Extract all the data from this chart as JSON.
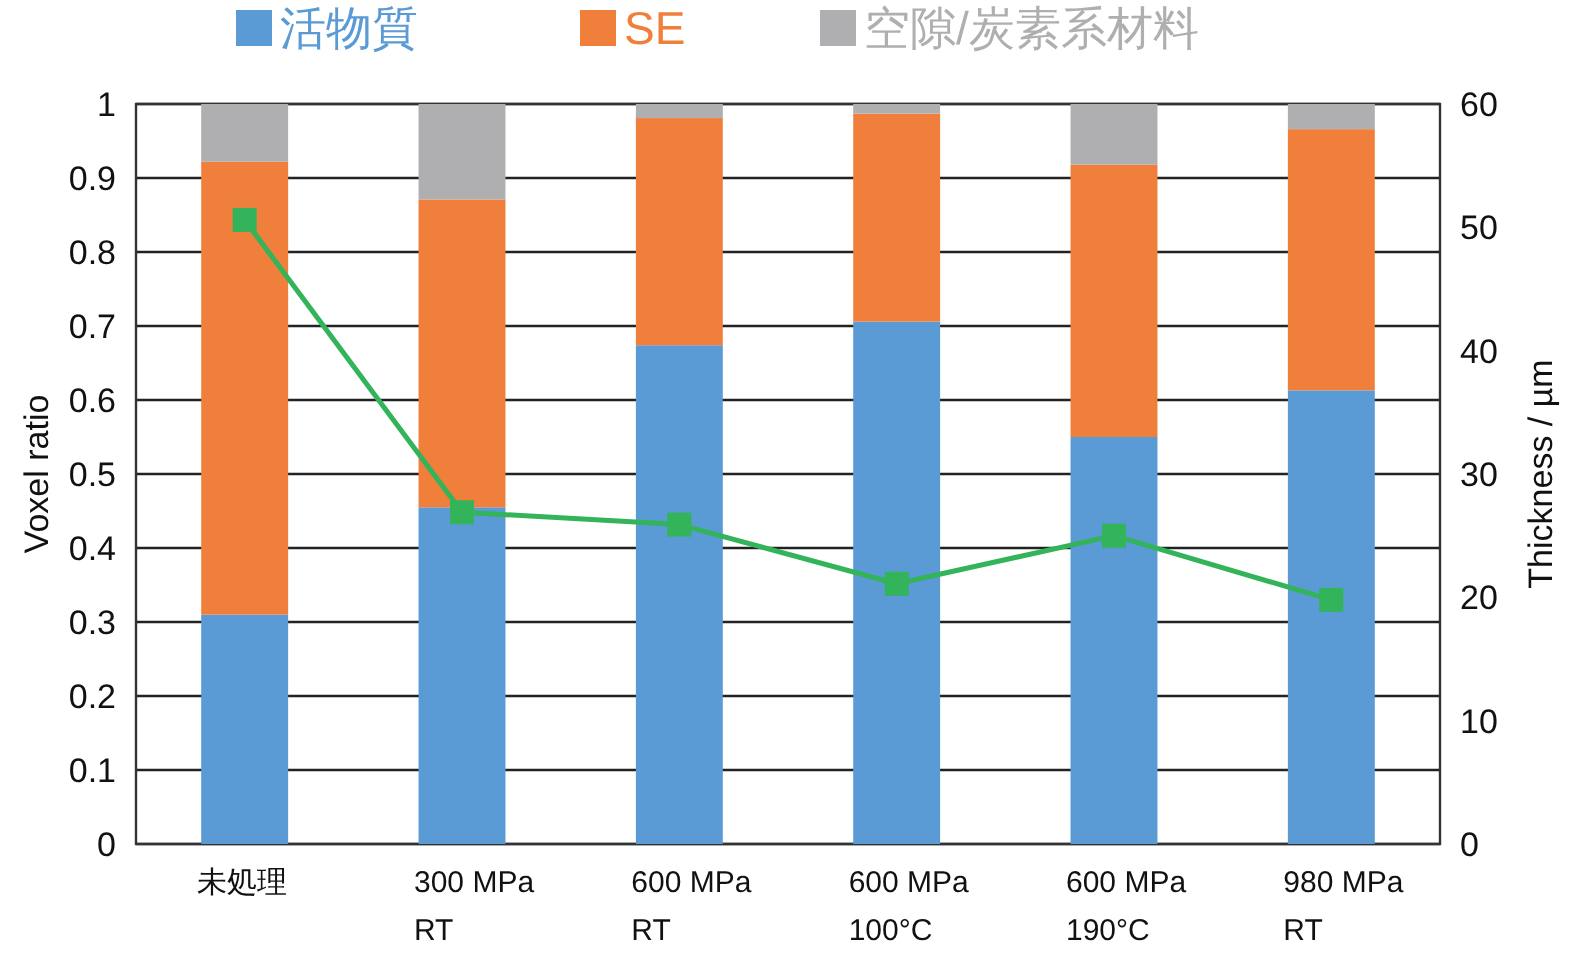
{
  "chart_data": {
    "type": "bar",
    "stacked": true,
    "categories": [
      "未処理",
      "300 MPa\nRT",
      "600 MPa\nRT",
      "600 MPa\n100°C",
      "600 MPa\n190°C",
      "980 MPa\nRT"
    ],
    "series": [
      {
        "name": "活物質",
        "color": "#5b9bd5",
        "values": [
          0.31,
          0.455,
          0.674,
          0.706,
          0.55,
          0.613
        ]
      },
      {
        "name": "SE",
        "color": "#f07f3c",
        "values": [
          0.612,
          0.416,
          0.307,
          0.281,
          0.368,
          0.353
        ]
      },
      {
        "name": "空隙/炭素系材料",
        "color": "#afafb2",
        "values": [
          0.078,
          0.129,
          0.019,
          0.013,
          0.082,
          0.034
        ]
      },
      {
        "type": "line",
        "axis": "y2",
        "color": "#33b35a",
        "marker": "square",
        "values": [
          50.6,
          26.9,
          25.9,
          21.1,
          25.0,
          19.8
        ]
      }
    ],
    "ylabel": "Voxel ratio",
    "y2label": "Thickness / µm",
    "ylim": [
      0,
      1
    ],
    "yticks": [
      0,
      0.1,
      0.2,
      0.3,
      0.4,
      0.5,
      0.6,
      0.7,
      0.8,
      0.9,
      1
    ],
    "y2lim": [
      0,
      60
    ],
    "y2ticks": [
      0,
      10,
      20,
      30,
      40,
      50,
      60
    ],
    "grid": "y",
    "legend": "top"
  }
}
